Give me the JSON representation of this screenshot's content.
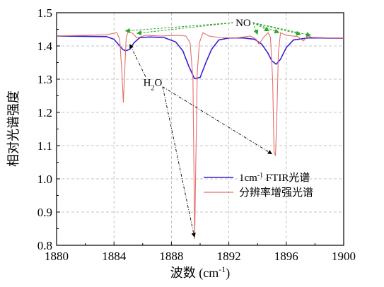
{
  "chart_data": {
    "type": "line",
    "title": "",
    "xlabel": "波数 (cm",
    "xlabel_sup": "-1",
    "xlabel_end": ")",
    "ylabel": "相对光谱强度",
    "xlim": [
      1880,
      1900
    ],
    "ylim": [
      0.8,
      1.5
    ],
    "x_ticks": [
      "1880",
      "1884",
      "1888",
      "1892",
      "1896",
      "1900"
    ],
    "y_ticks": [
      "0.8",
      "0.9",
      "1.0",
      "1.1",
      "1.2",
      "1.3",
      "1.4",
      "1.5"
    ],
    "grid": true,
    "legend_position": "lower-right",
    "series": [
      {
        "name": "1cm⁻¹ FTIR光谱",
        "name_base": "1cm",
        "name_sup": "-1",
        "name_tail": " FTIR光谱",
        "color": "#3a1fd6",
        "x": [
          1880,
          1883.5,
          1884.0,
          1884.3,
          1884.6,
          1884.8,
          1885.1,
          1885.4,
          1885.8,
          1886.5,
          1887.5,
          1888.3,
          1888.8,
          1889.2,
          1889.6,
          1890.0,
          1890.4,
          1890.8,
          1891.3,
          1892.0,
          1893.0,
          1893.8,
          1894.3,
          1894.7,
          1895.0,
          1895.3,
          1895.6,
          1896.0,
          1896.5,
          1897.5,
          1898.5,
          1900
        ],
        "y": [
          1.43,
          1.428,
          1.42,
          1.405,
          1.39,
          1.385,
          1.39,
          1.41,
          1.425,
          1.427,
          1.425,
          1.412,
          1.385,
          1.34,
          1.302,
          1.305,
          1.35,
          1.39,
          1.418,
          1.424,
          1.424,
          1.42,
          1.405,
          1.38,
          1.355,
          1.345,
          1.36,
          1.395,
          1.418,
          1.424,
          1.424,
          1.423
        ]
      },
      {
        "name": "分辨率增强光谱",
        "color": "#e3706a",
        "x": [
          1880,
          1882.0,
          1883.5,
          1884.2,
          1884.4,
          1884.55,
          1884.65,
          1884.75,
          1884.85,
          1885.0,
          1885.3,
          1885.6,
          1886.2,
          1887.2,
          1888.5,
          1889.0,
          1889.3,
          1889.5,
          1889.62,
          1889.7,
          1889.8,
          1889.95,
          1890.2,
          1890.6,
          1891.4,
          1892.5,
          1893.5,
          1893.9,
          1894.1,
          1894.4,
          1894.75,
          1894.9,
          1895.05,
          1895.15,
          1895.25,
          1895.35,
          1895.45,
          1895.6,
          1896.0,
          1896.8,
          1897.2,
          1897.5,
          1897.8,
          1898.5,
          1900
        ],
        "y": [
          1.43,
          1.432,
          1.434,
          1.44,
          1.42,
          1.32,
          1.23,
          1.33,
          1.425,
          1.444,
          1.438,
          1.424,
          1.432,
          1.43,
          1.432,
          1.43,
          1.41,
          1.3,
          0.82,
          1.05,
          1.32,
          1.41,
          1.44,
          1.43,
          1.425,
          1.424,
          1.43,
          1.42,
          1.405,
          1.425,
          1.44,
          1.425,
          1.3,
          1.08,
          1.07,
          1.2,
          1.38,
          1.44,
          1.432,
          1.428,
          1.415,
          1.43,
          1.426,
          1.425,
          1.423
        ]
      }
    ],
    "annotations": [
      {
        "label": "NO",
        "text_x": 1893.0,
        "text_y": 1.47,
        "targets": [
          [
            1884.8,
            1.445
          ],
          [
            1885.6,
            1.438
          ],
          [
            1894.0,
            1.435
          ],
          [
            1894.8,
            1.445
          ],
          [
            1895.5,
            1.44
          ],
          [
            1897.0,
            1.435
          ],
          [
            1897.7,
            1.432
          ]
        ],
        "color": "#2aa52a"
      },
      {
        "label_base": "H",
        "label_sub": "2",
        "label_tail": "O",
        "text_x": 1886.7,
        "text_y": 1.29,
        "targets": [
          [
            1885.1,
            1.405
          ],
          [
            1889.6,
            0.825
          ],
          [
            1895.0,
            1.075
          ]
        ],
        "color": "#000000"
      }
    ]
  }
}
